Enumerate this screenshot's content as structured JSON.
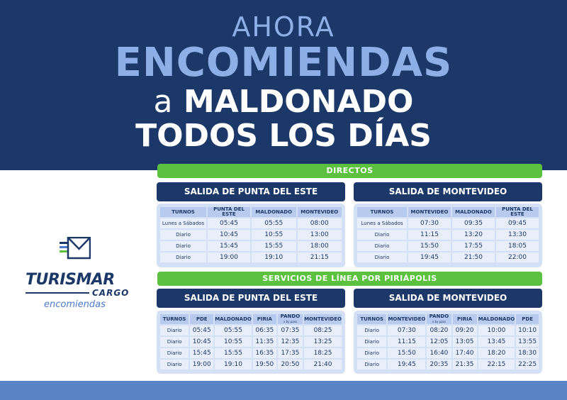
{
  "hero": {
    "line1": "AHORA",
    "line2": "ENCOMIENDAS",
    "line3_prefix": "a",
    "line3_main": "MALDONADO",
    "line4": "TODOS LOS DÍAS"
  },
  "colors": {
    "navy": "#1c3868",
    "light_blue": "#8eaee6",
    "green": "#5cc13e",
    "footer": "#5a83c6"
  },
  "logo": {
    "icon": "envelope-icon",
    "brand": "TURISMAR",
    "cargo": "CARGO",
    "tagline": "encomiendas"
  },
  "directos": {
    "title": "DIRECTOS",
    "punta": {
      "title": "SALIDA DE PUNTA DEL ESTE",
      "headers": [
        "TURNOS",
        "PUNTA DEL ESTE",
        "MALDONADO",
        "MONTEVIDEO"
      ],
      "rows": [
        [
          "Lunes a Sábados",
          "05:45",
          "05:55",
          "08:00"
        ],
        [
          "Diario",
          "10:45",
          "10:55",
          "13:00"
        ],
        [
          "Diario",
          "15:45",
          "15:55",
          "18:00"
        ],
        [
          "Diario",
          "19:00",
          "19:10",
          "21:15"
        ]
      ]
    },
    "montevideo": {
      "title": "SALIDA DE MONTEVIDEO",
      "headers": [
        "TURNOS",
        "MONTEVIDEO",
        "MALDONADO",
        "PUNTA DEL ESTE"
      ],
      "rows": [
        [
          "Lunes a Sábados",
          "07:30",
          "09:35",
          "09:45"
        ],
        [
          "Diario",
          "11:15",
          "13:20",
          "13:30"
        ],
        [
          "Diario",
          "15:50",
          "17:55",
          "18:05"
        ],
        [
          "Diario",
          "19:45",
          "21:50",
          "22:00"
        ]
      ]
    }
  },
  "linea": {
    "title": "SERVICIOS DE LÍNEA POR PIRIÁPOLIS",
    "punta": {
      "title": "SALIDA DE PUNTA DEL ESTE",
      "headers": [
        "TURNOS",
        "PDE",
        "MALDONADO",
        "PIRIA",
        "PANDO",
        "MONTEVIDEO"
      ],
      "pando_sub": "x by pass",
      "rows": [
        [
          "Diario",
          "05:45",
          "05:55",
          "06:35",
          "07:35",
          "08:25"
        ],
        [
          "Diario",
          "10:45",
          "10:55",
          "11:35",
          "12:35",
          "13:25"
        ],
        [
          "Diario",
          "15:45",
          "15:55",
          "16:35",
          "17:35",
          "18:25"
        ],
        [
          "Diario",
          "19:00",
          "19:10",
          "19:50",
          "20:50",
          "21:40"
        ]
      ]
    },
    "montevideo": {
      "title": "SALIDA DE MONTEVIDEO",
      "headers": [
        "TURNOS",
        "MONTEVIDEO",
        "PANDO",
        "PIRIA",
        "MALDONADO",
        "PDE"
      ],
      "pando_sub": "x by pass",
      "rows": [
        [
          "Diario",
          "07:30",
          "08:20",
          "09:20",
          "10:00",
          "10:10"
        ],
        [
          "Diario",
          "11:15",
          "12:05",
          "13:05",
          "13:45",
          "13:55"
        ],
        [
          "Diario",
          "15:50",
          "16:40",
          "17:40",
          "18:20",
          "18:30"
        ],
        [
          "Diario",
          "19:45",
          "20:35",
          "21:35",
          "22:15",
          "22:25"
        ]
      ]
    }
  }
}
